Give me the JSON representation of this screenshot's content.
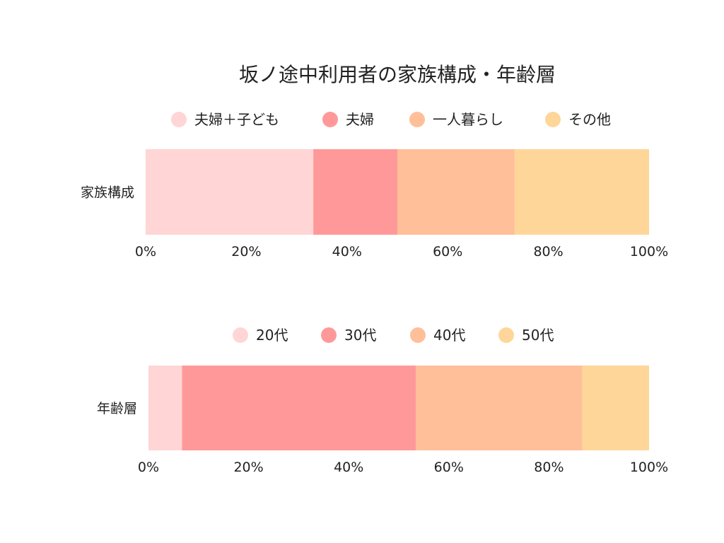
{
  "title": "坂ノ途中利用者の家族構成・年齢層",
  "chart_data": [
    {
      "type": "bar",
      "orientation": "horizontal",
      "stacked": "percent",
      "categories": [
        "家族構成"
      ],
      "series": [
        {
          "name": "夫婦＋子ども",
          "values": [
            33.3
          ],
          "color": "#FFD5D5"
        },
        {
          "name": "夫婦",
          "values": [
            16.7
          ],
          "color": "#FF9999"
        },
        {
          "name": "一人暮らし",
          "values": [
            23.3
          ],
          "color": "#FFBF99"
        },
        {
          "name": "その他",
          "values": [
            26.7
          ],
          "color": "#FFD699"
        }
      ],
      "xlim": [
        0,
        100
      ],
      "xticks": [
        "0%",
        "20%",
        "40%",
        "60%",
        "80%",
        "100%"
      ],
      "legend": "top",
      "grid": false
    },
    {
      "type": "bar",
      "orientation": "horizontal",
      "stacked": "percent",
      "categories": [
        "年齢層"
      ],
      "series": [
        {
          "name": "20代",
          "values": [
            6.7
          ],
          "color": "#FFD5D5"
        },
        {
          "name": "30代",
          "values": [
            46.7
          ],
          "color": "#FF9999"
        },
        {
          "name": "40代",
          "values": [
            33.3
          ],
          "color": "#FFBF99"
        },
        {
          "name": "50代",
          "values": [
            13.3
          ],
          "color": "#FFD699"
        }
      ],
      "xlim": [
        0,
        100
      ],
      "xticks": [
        "0%",
        "20%",
        "40%",
        "60%",
        "80%",
        "100%"
      ],
      "legend": "top",
      "grid": false
    }
  ]
}
